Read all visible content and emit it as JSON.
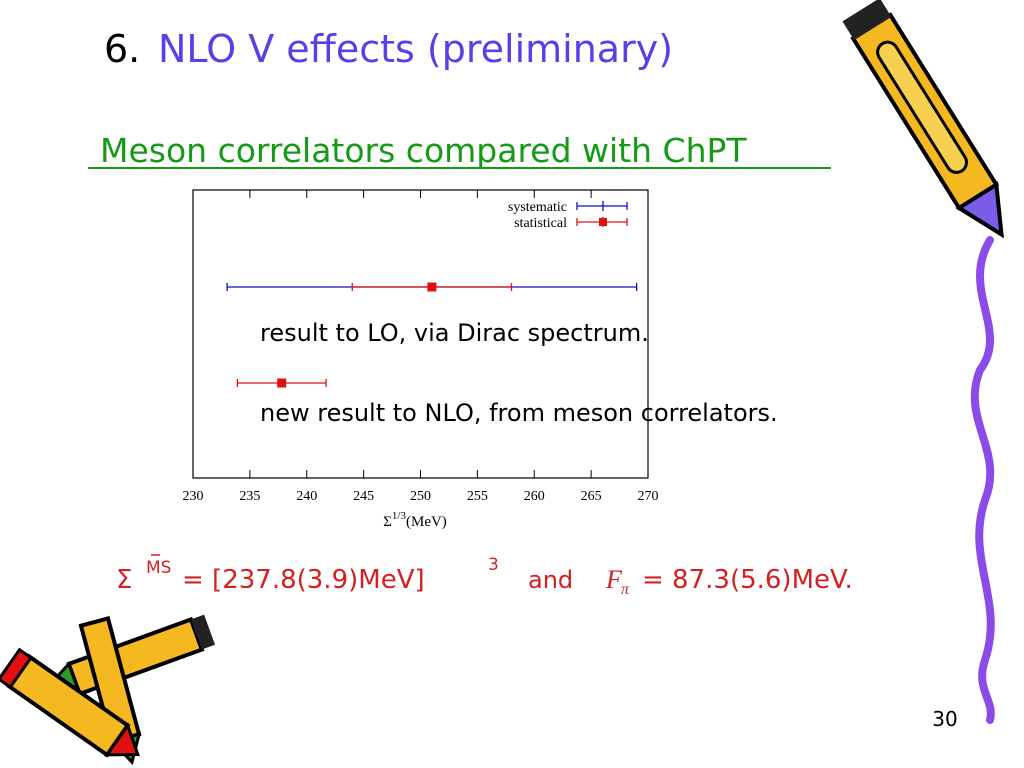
{
  "slide": {
    "title_number": "6.",
    "title": "NLO V effects (preliminary)",
    "subtitle": "Meson correlators compared with ChPT",
    "formula": [
      "Σ",
      "MS",
      "= [237.8(3.9)MeV]",
      "3",
      "and",
      "F",
      "π",
      "= 87.3(5.6)MeV."
    ],
    "page_number": "30"
  },
  "chart_data": {
    "type": "errorbar",
    "xlabel": [
      "Σ",
      "1/3",
      "(MeV)"
    ],
    "xlim": [
      230,
      270
    ],
    "xticks": [
      230,
      235,
      240,
      245,
      250,
      255,
      260,
      265,
      270
    ],
    "series": [
      {
        "name": "systematic",
        "color": "#1010c8"
      },
      {
        "name": "statistical",
        "color": "#e01010"
      }
    ],
    "points": [
      {
        "label": "result to LO, via Dirac spectrum.",
        "x": 251,
        "statistical": 7,
        "systematic": 18
      },
      {
        "label": "new result to NLO, from meson correlators.",
        "x": 237.8,
        "statistical": 3.9
      }
    ]
  }
}
